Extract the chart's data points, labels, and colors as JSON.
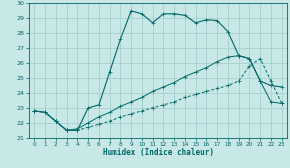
{
  "xlabel": "Humidex (Indice chaleur)",
  "bg_color": "#c8e8e8",
  "grid_color": "#a8cece",
  "line_color": "#006868",
  "xlim": [
    -0.5,
    23.5
  ],
  "ylim": [
    21,
    30
  ],
  "yticks": [
    21,
    22,
    23,
    24,
    25,
    26,
    27,
    28,
    29,
    30
  ],
  "xticks": [
    0,
    1,
    2,
    3,
    4,
    5,
    6,
    7,
    8,
    9,
    10,
    11,
    12,
    13,
    14,
    15,
    16,
    17,
    18,
    19,
    20,
    21,
    22,
    23
  ],
  "series1_x": [
    0,
    1,
    2,
    3,
    4,
    5,
    6,
    7,
    8,
    9,
    10,
    11,
    12,
    13,
    14,
    15,
    16,
    17,
    18,
    19,
    20,
    21,
    22,
    23
  ],
  "series1_y": [
    22.8,
    22.7,
    22.1,
    21.5,
    21.5,
    23.0,
    23.2,
    25.4,
    27.6,
    29.5,
    29.3,
    28.7,
    29.3,
    29.3,
    29.2,
    28.7,
    28.9,
    28.85,
    28.1,
    26.5,
    26.3,
    24.8,
    24.5,
    24.4
  ],
  "series2_x": [
    0,
    1,
    2,
    3,
    4,
    5,
    6,
    7,
    8,
    9,
    10,
    11,
    12,
    13,
    14,
    15,
    16,
    17,
    18,
    19,
    20,
    21,
    22,
    23
  ],
  "series2_y": [
    22.8,
    22.7,
    22.1,
    21.5,
    21.6,
    22.0,
    22.4,
    22.7,
    23.1,
    23.4,
    23.7,
    24.1,
    24.4,
    24.7,
    25.1,
    25.4,
    25.7,
    26.1,
    26.4,
    26.5,
    26.3,
    24.8,
    23.4,
    23.3
  ],
  "series3_x": [
    0,
    1,
    2,
    3,
    4,
    5,
    6,
    7,
    8,
    9,
    10,
    11,
    12,
    13,
    14,
    15,
    16,
    17,
    18,
    19,
    20,
    21,
    22,
    23
  ],
  "series3_y": [
    22.8,
    22.7,
    22.1,
    21.5,
    21.5,
    21.7,
    21.9,
    22.1,
    22.4,
    22.6,
    22.8,
    23.0,
    23.2,
    23.4,
    23.7,
    23.9,
    24.1,
    24.3,
    24.5,
    24.8,
    25.8,
    26.3,
    24.8,
    23.3
  ]
}
